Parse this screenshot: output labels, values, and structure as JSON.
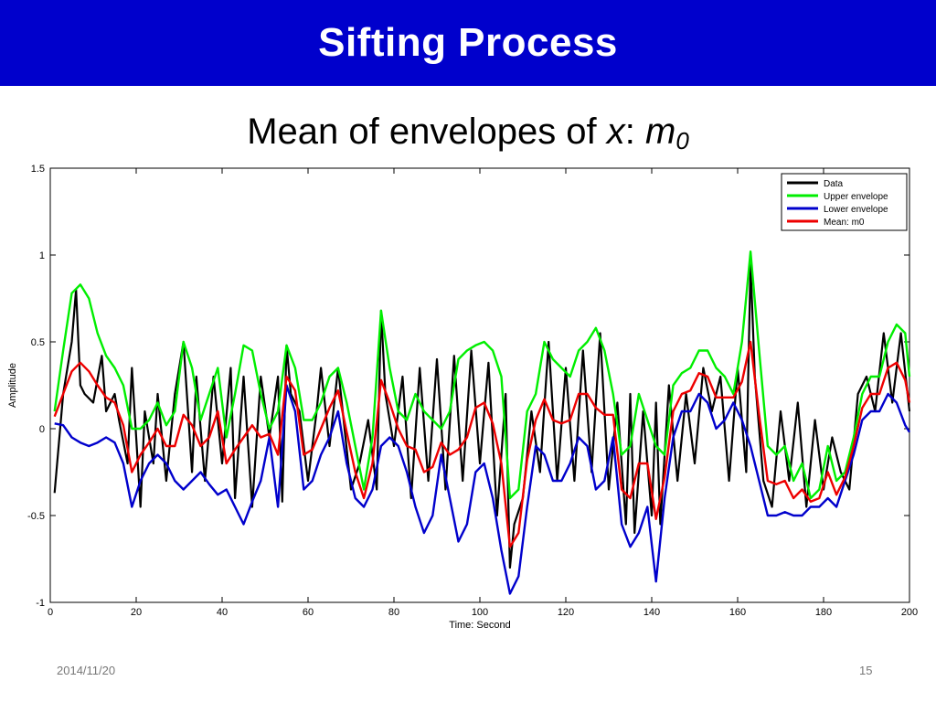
{
  "slide": {
    "title": "Sifting Process",
    "subtitle_prefix": "Mean of envelopes of ",
    "subtitle_var": "x",
    "subtitle_colon": ": ",
    "subtitle_m": "m",
    "subtitle_sub": "0",
    "date": "2014/11/20",
    "page_number": "15"
  },
  "chart_data": {
    "type": "line",
    "title": "",
    "xlabel": "Time: Second",
    "ylabel": "Amplitude",
    "xlim": [
      0,
      200
    ],
    "ylim": [
      -1,
      1.5
    ],
    "xticks": [
      0,
      20,
      40,
      60,
      80,
      100,
      120,
      140,
      160,
      180,
      200
    ],
    "yticks": [
      -1,
      -0.5,
      0,
      0.5,
      1,
      1.5
    ],
    "xtick_labels": [
      "0",
      "20",
      "40",
      "60",
      "80",
      "100",
      "120",
      "140",
      "160",
      "180",
      "200"
    ],
    "ytick_labels": [
      "-1",
      "-0.5",
      "0",
      "0.5",
      "1",
      "1.5"
    ],
    "grid": false,
    "legend_position": "top-right",
    "series": [
      {
        "name": "Data",
        "color": "#000000",
        "x": [
          1,
          3,
          5,
          6,
          7,
          8,
          10,
          12,
          13,
          15,
          16,
          18,
          19,
          21,
          22,
          24,
          25,
          27,
          29,
          31,
          33,
          34,
          36,
          38,
          40,
          42,
          43,
          45,
          47,
          49,
          51,
          53,
          54,
          55,
          56,
          58,
          60,
          62,
          63,
          65,
          67,
          70,
          72,
          74,
          76,
          77,
          78,
          80,
          82,
          84,
          86,
          88,
          90,
          92,
          94,
          96,
          98,
          100,
          102,
          104,
          106,
          107,
          108,
          110,
          112,
          114,
          116,
          118,
          120,
          122,
          124,
          126,
          128,
          130,
          132,
          134,
          135,
          136,
          138,
          140,
          141,
          142,
          144,
          146,
          148,
          150,
          152,
          154,
          156,
          158,
          160,
          162,
          163,
          164,
          166,
          168,
          170,
          172,
          174,
          176,
          178,
          180,
          182,
          184,
          186,
          188,
          190,
          192,
          194,
          196,
          198,
          200
        ],
        "y": [
          -0.37,
          0.2,
          0.5,
          0.8,
          0.25,
          0.2,
          0.15,
          0.42,
          0.1,
          0.2,
          0.05,
          -0.2,
          0.35,
          -0.45,
          0.1,
          -0.2,
          0.2,
          -0.3,
          0.2,
          0.5,
          -0.25,
          0.3,
          -0.3,
          0.3,
          -0.2,
          0.35,
          -0.4,
          0.3,
          -0.45,
          0.3,
          -0.05,
          0.3,
          -0.42,
          0.48,
          0.2,
          0.1,
          -0.3,
          0.1,
          0.35,
          -0.1,
          0.35,
          -0.35,
          -0.2,
          0.05,
          -0.35,
          0.68,
          0.2,
          -0.1,
          0.3,
          -0.4,
          0.35,
          -0.3,
          0.4,
          -0.35,
          0.42,
          -0.3,
          0.45,
          -0.2,
          0.38,
          -0.5,
          0.2,
          -0.8,
          -0.55,
          -0.4,
          0.1,
          -0.25,
          0.5,
          -0.3,
          0.35,
          -0.3,
          0.45,
          -0.25,
          0.55,
          -0.35,
          0.15,
          -0.55,
          0.2,
          -0.6,
          0.1,
          -0.5,
          0.15,
          -0.55,
          0.25,
          -0.3,
          0.2,
          -0.2,
          0.35,
          0.1,
          0.3,
          -0.3,
          0.35,
          -0.25,
          0.95,
          0.3,
          -0.3,
          -0.45,
          0.1,
          -0.3,
          0.15,
          -0.45,
          0.05,
          -0.35,
          -0.05,
          -0.25,
          -0.35,
          0.2,
          0.3,
          0.1,
          0.55,
          0.15,
          0.55,
          0.1
        ]
      },
      {
        "name": "Upper envelope",
        "color": "#00ee00",
        "x": [
          1,
          3,
          5,
          7,
          9,
          11,
          13,
          15,
          17,
          19,
          21,
          23,
          25,
          27,
          29,
          31,
          33,
          35,
          37,
          39,
          41,
          43,
          45,
          47,
          49,
          51,
          53,
          55,
          57,
          59,
          61,
          63,
          65,
          67,
          69,
          71,
          73,
          75,
          77,
          79,
          81,
          83,
          85,
          87,
          89,
          91,
          93,
          95,
          97,
          99,
          101,
          103,
          105,
          107,
          109,
          111,
          113,
          115,
          117,
          119,
          121,
          123,
          125,
          127,
          129,
          131,
          133,
          135,
          137,
          139,
          141,
          143,
          145,
          147,
          149,
          151,
          153,
          155,
          157,
          159,
          161,
          163,
          165,
          167,
          169,
          171,
          173,
          175,
          177,
          179,
          181,
          183,
          185,
          187,
          189,
          191,
          193,
          195,
          197,
          199,
          200
        ],
        "y": [
          0.1,
          0.45,
          0.78,
          0.83,
          0.75,
          0.55,
          0.42,
          0.35,
          0.25,
          0.0,
          0.0,
          0.05,
          0.15,
          0.02,
          0.1,
          0.5,
          0.35,
          0.05,
          0.2,
          0.35,
          -0.05,
          0.2,
          0.48,
          0.45,
          0.2,
          0.0,
          0.1,
          0.48,
          0.35,
          0.05,
          0.05,
          0.15,
          0.3,
          0.35,
          0.15,
          -0.1,
          -0.35,
          -0.05,
          0.68,
          0.35,
          0.1,
          0.05,
          0.2,
          0.1,
          0.05,
          0.0,
          0.1,
          0.4,
          0.45,
          0.48,
          0.5,
          0.45,
          0.3,
          -0.4,
          -0.35,
          0.1,
          0.2,
          0.5,
          0.4,
          0.35,
          0.3,
          0.45,
          0.5,
          0.58,
          0.45,
          0.2,
          -0.15,
          -0.1,
          0.2,
          0.05,
          -0.1,
          -0.15,
          0.25,
          0.32,
          0.35,
          0.45,
          0.45,
          0.35,
          0.3,
          0.2,
          0.5,
          1.02,
          0.45,
          -0.1,
          -0.15,
          -0.1,
          -0.3,
          -0.2,
          -0.4,
          -0.35,
          -0.1,
          -0.3,
          -0.25,
          -0.05,
          0.2,
          0.3,
          0.3,
          0.5,
          0.6,
          0.55,
          0.3
        ]
      },
      {
        "name": "Lower envelope",
        "color": "#0000cc",
        "x": [
          1,
          3,
          5,
          7,
          9,
          11,
          13,
          15,
          17,
          19,
          21,
          23,
          25,
          27,
          29,
          31,
          33,
          35,
          37,
          39,
          41,
          43,
          45,
          47,
          49,
          51,
          53,
          55,
          57,
          59,
          61,
          63,
          65,
          67,
          69,
          71,
          73,
          75,
          77,
          79,
          81,
          83,
          85,
          87,
          89,
          91,
          93,
          95,
          97,
          99,
          101,
          103,
          105,
          107,
          109,
          111,
          113,
          115,
          117,
          119,
          121,
          123,
          125,
          127,
          129,
          131,
          133,
          135,
          137,
          139,
          141,
          143,
          145,
          147,
          149,
          151,
          153,
          155,
          157,
          159,
          161,
          163,
          165,
          167,
          169,
          171,
          173,
          175,
          177,
          179,
          181,
          183,
          185,
          187,
          189,
          191,
          193,
          195,
          197,
          199,
          200
        ],
        "y": [
          0.03,
          0.02,
          -0.05,
          -0.08,
          -0.1,
          -0.08,
          -0.05,
          -0.08,
          -0.2,
          -0.45,
          -0.3,
          -0.2,
          -0.15,
          -0.2,
          -0.3,
          -0.35,
          -0.3,
          -0.25,
          -0.32,
          -0.38,
          -0.35,
          -0.45,
          -0.55,
          -0.42,
          -0.3,
          -0.05,
          -0.45,
          0.25,
          0.1,
          -0.35,
          -0.3,
          -0.15,
          -0.05,
          0.1,
          -0.2,
          -0.4,
          -0.45,
          -0.35,
          -0.1,
          -0.05,
          -0.1,
          -0.25,
          -0.45,
          -0.6,
          -0.5,
          -0.15,
          -0.4,
          -0.65,
          -0.55,
          -0.25,
          -0.2,
          -0.4,
          -0.7,
          -0.95,
          -0.85,
          -0.45,
          -0.1,
          -0.15,
          -0.3,
          -0.3,
          -0.2,
          -0.05,
          -0.1,
          -0.35,
          -0.3,
          -0.05,
          -0.55,
          -0.68,
          -0.6,
          -0.45,
          -0.88,
          -0.4,
          -0.05,
          0.1,
          0.1,
          0.2,
          0.15,
          0.0,
          0.05,
          0.15,
          0.05,
          -0.1,
          -0.3,
          -0.5,
          -0.5,
          -0.48,
          -0.5,
          -0.5,
          -0.45,
          -0.45,
          -0.4,
          -0.45,
          -0.3,
          -0.15,
          0.05,
          0.1,
          0.1,
          0.2,
          0.15,
          0.02,
          -0.02
        ]
      },
      {
        "name": "Mean: m0",
        "color": "#ee0000",
        "x": [
          1,
          3,
          5,
          7,
          9,
          11,
          13,
          15,
          17,
          19,
          21,
          23,
          25,
          27,
          29,
          31,
          33,
          35,
          37,
          39,
          41,
          43,
          45,
          47,
          49,
          51,
          53,
          55,
          57,
          59,
          61,
          63,
          65,
          67,
          69,
          71,
          73,
          75,
          77,
          79,
          81,
          83,
          85,
          87,
          89,
          91,
          93,
          95,
          97,
          99,
          101,
          103,
          105,
          107,
          109,
          111,
          113,
          115,
          117,
          119,
          121,
          123,
          125,
          127,
          129,
          131,
          133,
          135,
          137,
          139,
          141,
          143,
          145,
          147,
          149,
          151,
          153,
          155,
          157,
          159,
          161,
          163,
          165,
          167,
          169,
          171,
          173,
          175,
          177,
          179,
          181,
          183,
          185,
          187,
          189,
          191,
          193,
          195,
          197,
          199,
          200
        ],
        "y": [
          0.07,
          0.2,
          0.33,
          0.38,
          0.33,
          0.25,
          0.18,
          0.15,
          0.02,
          -0.25,
          -0.15,
          -0.08,
          0.0,
          -0.1,
          -0.1,
          0.08,
          0.02,
          -0.1,
          -0.05,
          0.1,
          -0.2,
          -0.12,
          -0.05,
          0.02,
          -0.05,
          -0.03,
          -0.15,
          0.3,
          0.22,
          -0.15,
          -0.12,
          0.0,
          0.12,
          0.22,
          -0.02,
          -0.25,
          -0.4,
          -0.2,
          0.28,
          0.15,
          0.0,
          -0.1,
          -0.12,
          -0.25,
          -0.22,
          -0.08,
          -0.15,
          -0.12,
          -0.05,
          0.12,
          0.15,
          0.03,
          -0.2,
          -0.68,
          -0.6,
          -0.18,
          0.05,
          0.17,
          0.05,
          0.03,
          0.05,
          0.2,
          0.2,
          0.12,
          0.08,
          0.08,
          -0.35,
          -0.4,
          -0.2,
          -0.2,
          -0.52,
          -0.28,
          0.1,
          0.2,
          0.22,
          0.32,
          0.3,
          0.18,
          0.18,
          0.18,
          0.27,
          0.5,
          0.08,
          -0.3,
          -0.32,
          -0.3,
          -0.4,
          -0.35,
          -0.42,
          -0.4,
          -0.25,
          -0.38,
          -0.28,
          -0.1,
          0.12,
          0.2,
          0.2,
          0.35,
          0.38,
          0.28,
          0.15
        ]
      }
    ]
  }
}
